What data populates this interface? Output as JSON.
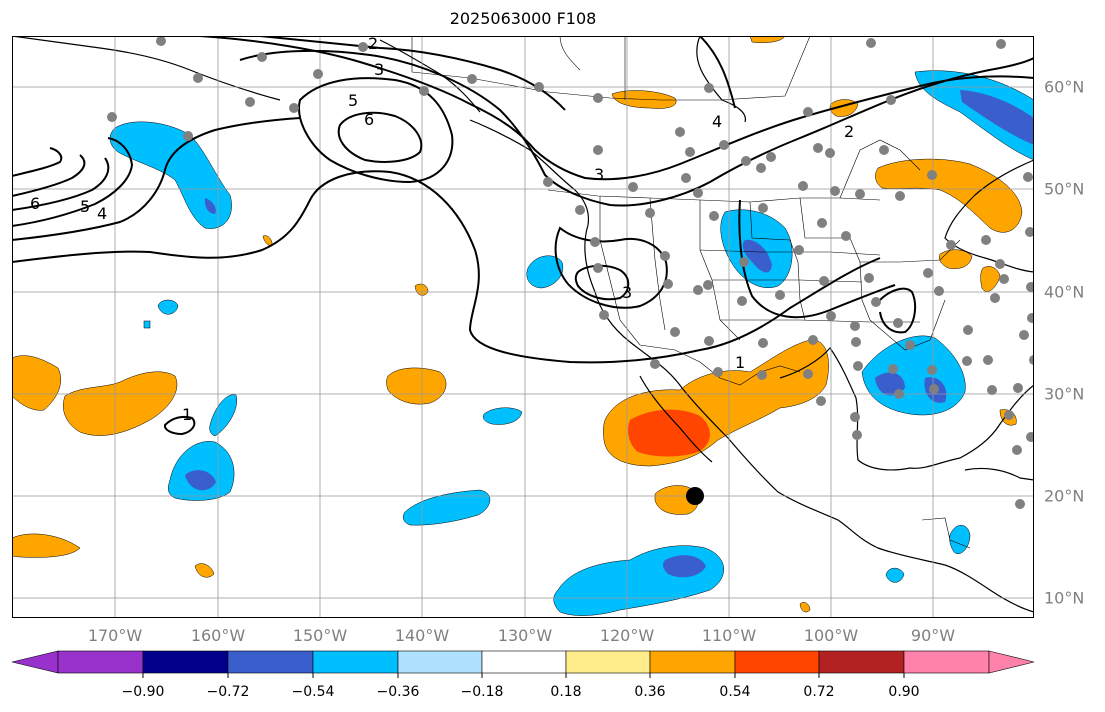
{
  "title": "2025063000 F108",
  "lon_labels": [
    "170°W",
    "160°W",
    "150°W",
    "140°W",
    "130°W",
    "120°W",
    "110°W",
    "100°W",
    "90°W"
  ],
  "lat_labels": [
    "60°N",
    "50°N",
    "40°N",
    "30°N",
    "20°N",
    "10°N"
  ],
  "contour_labels": [
    "2",
    "3",
    "5",
    "6",
    "6",
    "5",
    "4",
    "4",
    "2",
    "3",
    "3",
    "1",
    "1"
  ],
  "colorbar": {
    "ticks": [
      "−0.90",
      "−0.72",
      "−0.54",
      "−0.36",
      "−0.18",
      "0.18",
      "0.36",
      "0.54",
      "0.72",
      "0.90"
    ],
    "colors": [
      "#9932cc",
      "#00008b",
      "#3a5fcd",
      "#00bfff",
      "#b0e2ff",
      "#ffffff",
      "#ffec8b",
      "#ffa500",
      "#ff4500",
      "#b22222",
      "#ff82ab"
    ]
  }
}
